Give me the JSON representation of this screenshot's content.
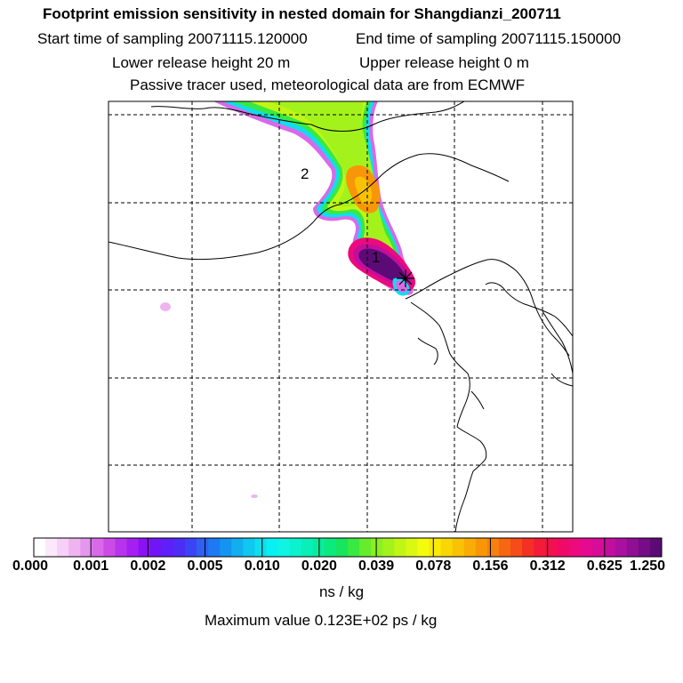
{
  "title": "Footprint emission sensitivity in nested domain for Shangdianzi_200711",
  "start_sampling": "Start time of sampling 20071115.120000",
  "end_sampling": "End time of sampling 20071115.150000",
  "lower_release": "Lower release height   20 m",
  "upper_release": "Upper release height    0 m",
  "tracer_info": "Passive tracer used, meteorological data are from ECMWF",
  "map": {
    "labels": [
      "1",
      "2"
    ],
    "receptor": "+"
  },
  "colorbar": {
    "ticks": [
      "0.000",
      "0.001",
      "0.002",
      "0.005",
      "0.010",
      "0.020",
      "0.039",
      "0.078",
      "0.156",
      "0.312",
      "0.625",
      "1.250"
    ],
    "colors": [
      "#ffffff",
      "#fbe8fb",
      "#f6d0f6",
      "#eeb4f0",
      "#e596ee",
      "#d86ae9",
      "#cc4ae6",
      "#b833ec",
      "#a51ff2",
      "#8a12f4",
      "#7016f6",
      "#5e1ff8",
      "#4d2cf6",
      "#3a44f5",
      "#2f5ff3",
      "#1d7af2",
      "#1493f1",
      "#12aef0",
      "#0fc7ef",
      "#10ddee",
      "#09f0f2",
      "#10f4e4",
      "#0bf2cf",
      "#08efb8",
      "#08ec9c",
      "#0ce97d",
      "#16e55d",
      "#3ae842",
      "#66ec2c",
      "#8af023",
      "#a4f21b",
      "#c0f616",
      "#daf812",
      "#f5fb0c",
      "#f9ea08",
      "#f9d604",
      "#f9c204",
      "#f9ac06",
      "#f99608",
      "#f8800c",
      "#f76612",
      "#f54c1a",
      "#f33024",
      "#f41a3a",
      "#f2104e",
      "#ef0a66",
      "#ec0a7c",
      "#e60a90",
      "#d80c98",
      "#c20e9e",
      "#aa10a0",
      "#8e0f94",
      "#760c88",
      "#5c0a76"
    ],
    "units": "ns / kg"
  },
  "max_value": "Maximum value  0.123E+02 ps / kg"
}
